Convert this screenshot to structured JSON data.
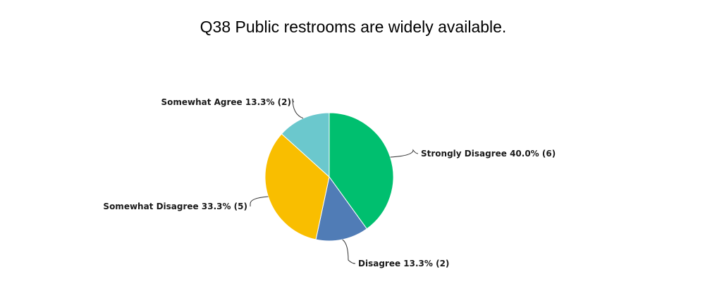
{
  "chart_data": {
    "type": "pie",
    "title": "Q38 Public restrooms are widely available.",
    "slices": [
      {
        "label": "Strongly Disagree 40.0% (6)",
        "category": "Strongly Disagree",
        "percent": 40.0,
        "count": 6,
        "color": "#00bf6f"
      },
      {
        "label": "Disagree 13.3% (2)",
        "category": "Disagree",
        "percent": 13.3,
        "count": 2,
        "color": "#507cb6"
      },
      {
        "label": "Somewhat Disagree 33.3% (5)",
        "category": "Somewhat Disagree",
        "percent": 33.3,
        "count": 5,
        "color": "#f9be00"
      },
      {
        "label": "Somewhat Agree 13.3% (2)",
        "category": "Somewhat Agree",
        "percent": 13.3,
        "count": 2,
        "color": "#6bc8cd"
      }
    ]
  }
}
